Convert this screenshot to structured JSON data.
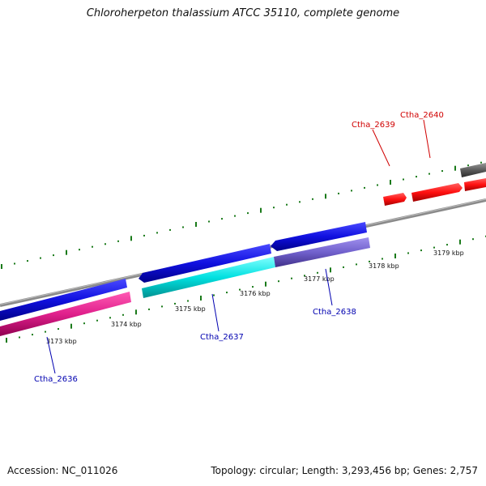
{
  "title": "Chloroherpeton thalassium ATCC 35110, complete genome",
  "footer": {
    "accession": "Accession: NC_011026",
    "summary": "Topology: circular; Length: 3,293,456 bp; Genes: 2,757"
  },
  "colors": {
    "backbone": "#8a8a8a",
    "tick": "#1a7a1a",
    "forward_label": "#d00000",
    "reverse_label": "#0000b0",
    "tick_label": "#111111"
  },
  "kbp_ticks": [
    "3173 kbp",
    "3174 kbp",
    "3175 kbp",
    "3176 kbp",
    "3177 kbp",
    "3178 kbp",
    "3179 kbp"
  ],
  "genes_labeled": [
    {
      "name": "Ctha_2636",
      "strand": "reverse",
      "color": "#e0208c"
    },
    {
      "name": "Ctha_2637",
      "strand": "reverse",
      "color": "#00e0e0"
    },
    {
      "name": "Ctha_2638",
      "strand": "reverse",
      "color": "#7060cc"
    },
    {
      "name": "Ctha_2639",
      "strand": "forward",
      "color": "#ff1010"
    },
    {
      "name": "Ctha_2640",
      "strand": "forward",
      "color": "#ff1010"
    }
  ]
}
